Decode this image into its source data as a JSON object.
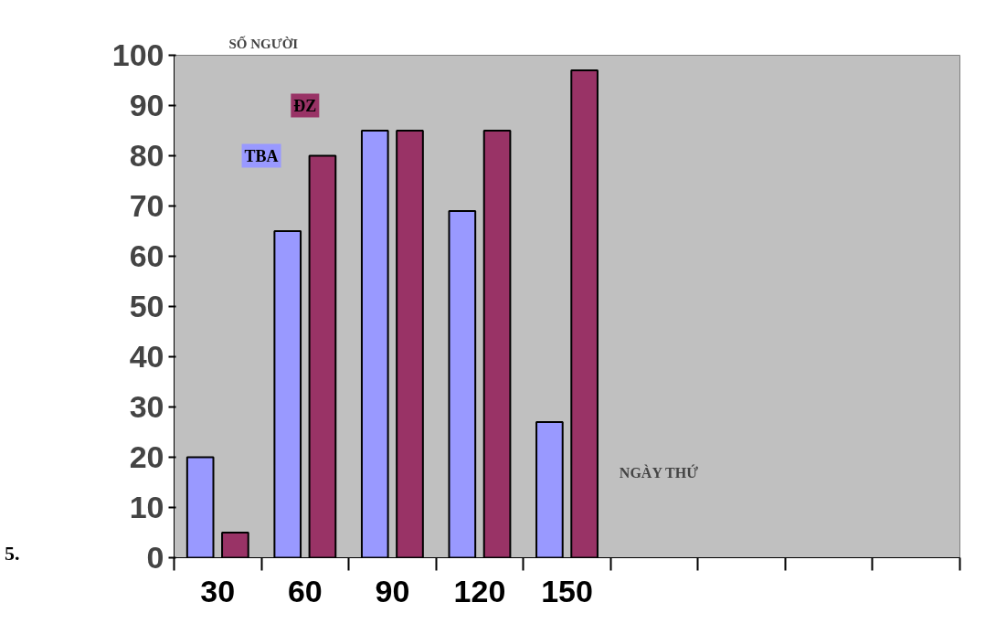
{
  "chart_data": {
    "type": "bar",
    "ylabel": "SỐ NGƯỜI",
    "xlabel": "NGÀY THỨ",
    "categories": [
      "30",
      "60",
      "90",
      "120",
      "150",
      null,
      null,
      null,
      null
    ],
    "series": [
      {
        "name": "TBA",
        "color": "#9999ff",
        "values": [
          20,
          65,
          85,
          69,
          27,
          null,
          null,
          null,
          null
        ]
      },
      {
        "name": "ĐZ",
        "color": "#993366",
        "values": [
          5,
          80,
          85,
          85,
          97,
          null,
          null,
          null,
          null
        ]
      }
    ],
    "ylim": [
      0,
      100
    ],
    "yticks": [
      0,
      10,
      20,
      30,
      40,
      50,
      60,
      70,
      80,
      90,
      100
    ],
    "grid": false,
    "annotations": [
      "5."
    ]
  }
}
